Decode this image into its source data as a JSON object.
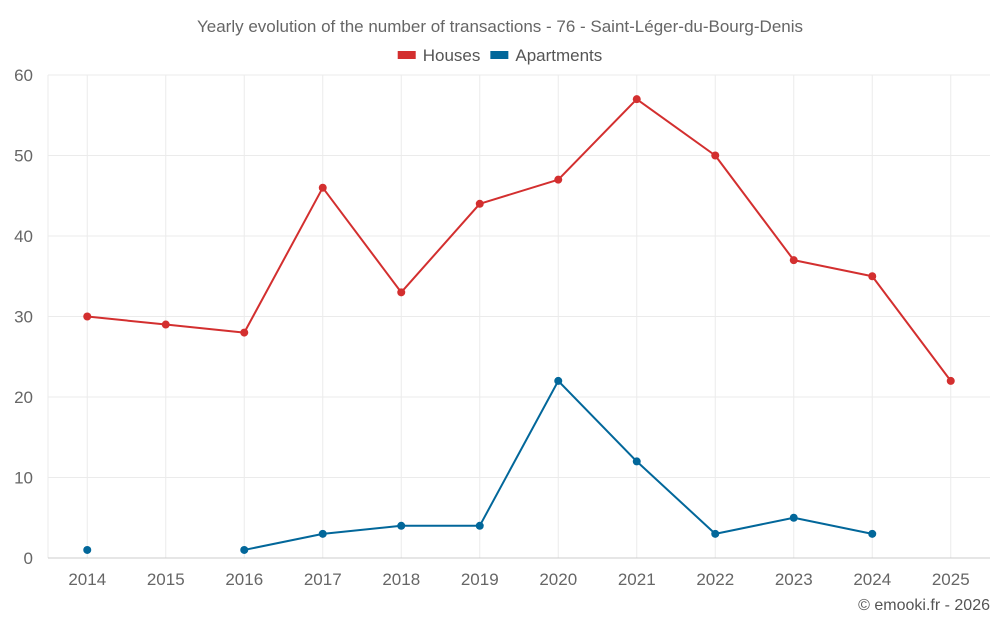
{
  "chart_data": {
    "type": "line",
    "title": "Yearly evolution of the number of transactions - 76 - Saint-Léger-du-Bourg-Denis",
    "categories": [
      "2014",
      "2015",
      "2016",
      "2017",
      "2018",
      "2019",
      "2020",
      "2021",
      "2022",
      "2023",
      "2024",
      "2025"
    ],
    "ylim": [
      0,
      60
    ],
    "yticks": [
      0,
      10,
      20,
      30,
      40,
      50,
      60
    ],
    "xlabel": "",
    "ylabel": "",
    "grid": true,
    "legend_position": "top-center",
    "series": [
      {
        "name": "Houses",
        "color": "#d32f2f",
        "values": [
          30,
          29,
          28,
          46,
          33,
          44,
          47,
          57,
          50,
          37,
          35,
          22
        ]
      },
      {
        "name": "Apartments",
        "color": "#02679a",
        "values": [
          1,
          null,
          1,
          3,
          4,
          4,
          22,
          12,
          3,
          5,
          3,
          null
        ]
      }
    ]
  },
  "credit": "© emooki.fr - 2026"
}
